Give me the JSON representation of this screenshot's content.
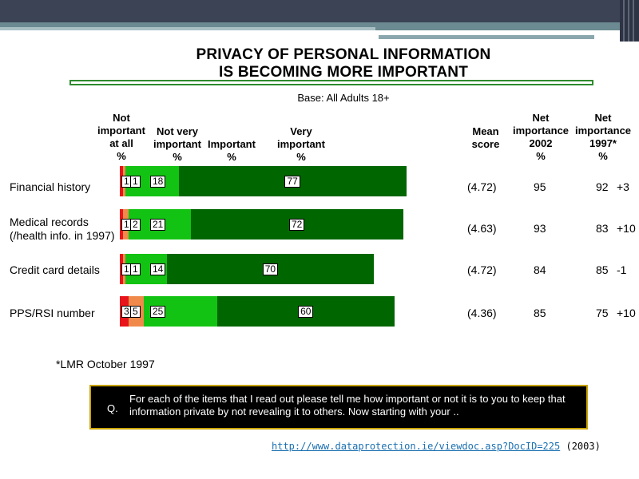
{
  "chart_data": {
    "type": "bar",
    "stacked": true,
    "orientation": "horizontal",
    "title": "PRIVACY OF PERSONAL INFORMATION\nIS BECOMING MORE IMPORTANT",
    "subtitle": "Base: All Adults 18+",
    "categories": [
      "Financial history",
      "Medical records\n(/health info. in 1997)",
      "Credit card details",
      "PPS/RSI number"
    ],
    "series": [
      {
        "name": "Not\nimportant\nat all\n%",
        "color": "#e8141b",
        "values": [
          1,
          1,
          1,
          3
        ]
      },
      {
        "name": "Not very\nimportant\n%",
        "color": "#f08a4b",
        "values": [
          1,
          2,
          1,
          5
        ]
      },
      {
        "name": "Important\n%",
        "color": "#13c313",
        "values": [
          18,
          21,
          14,
          25
        ]
      },
      {
        "name": "Very\nimportant\n%",
        "color": "#006600",
        "values": [
          77,
          72,
          70,
          60
        ]
      }
    ],
    "table": {
      "headers": {
        "mean": "Mean\nscore",
        "net2002": "Net\nimportance\n2002\n%",
        "net1997": "Net\nimportance\n1997*\n%"
      },
      "mean_scores": [
        "(4.72)",
        "(4.63)",
        "(4.72)",
        "(4.36)"
      ],
      "net_2002": [
        "95",
        "93",
        "84",
        "85"
      ],
      "net_1997": [
        "92",
        "83",
        "85",
        "75"
      ],
      "change": [
        "+3",
        "+10",
        "-1",
        "+10"
      ]
    },
    "footnote": "*LMR October 1997",
    "legend": "column headers above bars"
  },
  "question": {
    "label": "Q.",
    "text": "For each of the items that I read out please tell me how important or not it is to you to keep that information private by not revealing it to others. Now starting with your .."
  },
  "source": {
    "url": "http://www.dataprotection.ie/viewdoc.asp?DocID=225",
    "year": "(2003)"
  },
  "colors": {
    "topbar": "#3b4354",
    "accent_rule": "#2e8b2e",
    "question_border": "#c9a400"
  }
}
